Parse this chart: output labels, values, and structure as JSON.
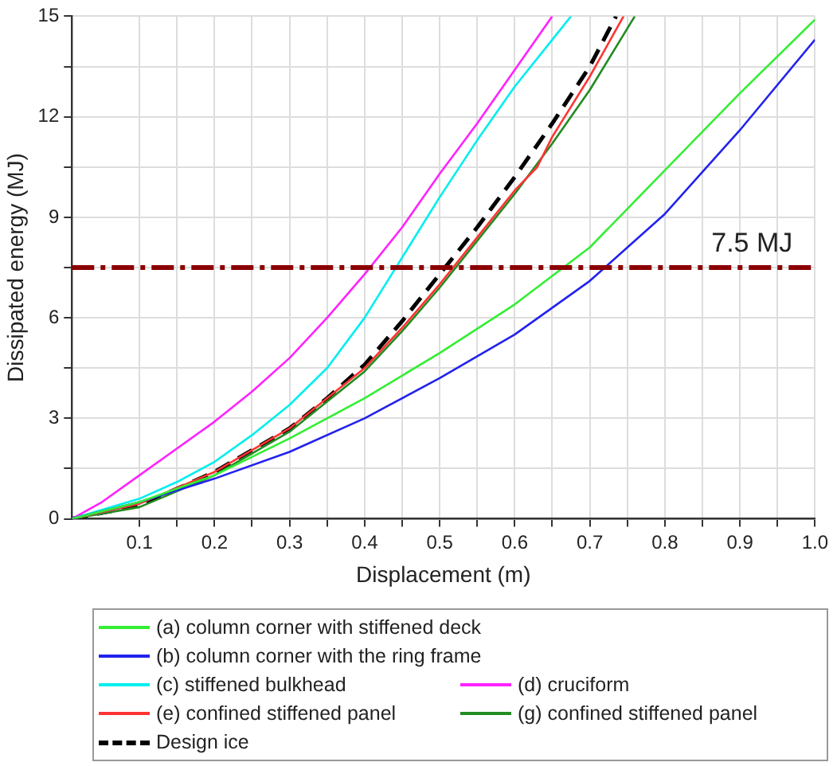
{
  "chart_data": {
    "type": "line",
    "xlabel": "Displacement (m)",
    "ylabel": "Dissipated energy (MJ)",
    "xlim": [
      0.01,
      1.0
    ],
    "ylim": [
      0,
      15
    ],
    "xticks": [
      0.1,
      {
        "value": 0.15,
        "label": null
      },
      0.2,
      {
        "value": 0.25,
        "label": null
      },
      0.3,
      {
        "value": 0.35,
        "label": null
      },
      0.4,
      {
        "value": 0.45,
        "label": null
      },
      0.5,
      {
        "value": 0.55,
        "label": null
      },
      0.6,
      {
        "value": 0.65,
        "label": null
      },
      0.7,
      {
        "value": 0.75,
        "label": null
      },
      0.8,
      {
        "value": 0.85,
        "label": null
      },
      0.9,
      {
        "value": 0.95,
        "label": null
      },
      {
        "value": 1.0,
        "label": "1.0"
      }
    ],
    "yticks": [
      0,
      {
        "value": 1.5,
        "label": null
      },
      3,
      {
        "value": 4.5,
        "label": null
      },
      6,
      {
        "value": 7.5,
        "label": null
      },
      9,
      {
        "value": 10.5,
        "label": null
      },
      12,
      {
        "value": 13.5,
        "label": null
      },
      15
    ],
    "grid": true,
    "legend": "bottom",
    "marker": "none",
    "line_style": "solid",
    "ref_lines": [
      {
        "axis": "y",
        "value": 7.5,
        "label": "7.5 MJ",
        "color": "#8b0000",
        "line_style": "dashdot"
      }
    ],
    "series": [
      {
        "name": "(a) column corner with stiffened deck",
        "color": "#33ee33",
        "x": [
          0.01,
          0.1,
          0.2,
          0.3,
          0.4,
          0.5,
          0.6,
          0.7,
          0.8,
          0.9,
          1.0
        ],
        "values": [
          0,
          0.5,
          1.3,
          2.4,
          3.6,
          4.95,
          6.4,
          8.1,
          10.4,
          12.7,
          14.9
        ]
      },
      {
        "name": "(b) column corner with the ring frame",
        "color": "#2222ee",
        "x": [
          0.01,
          0.1,
          0.2,
          0.3,
          0.4,
          0.5,
          0.6,
          0.7,
          0.8,
          0.9,
          1.0
        ],
        "values": [
          0,
          0.5,
          1.2,
          2.0,
          3.0,
          4.2,
          5.5,
          7.1,
          9.1,
          11.6,
          14.3
        ]
      },
      {
        "name": "(c) stiffened bulkhead",
        "color": "#00eeee",
        "x": [
          0.01,
          0.1,
          0.15,
          0.2,
          0.25,
          0.3,
          0.35,
          0.4,
          0.45,
          0.5,
          0.55,
          0.6,
          0.65,
          0.675
        ],
        "values": [
          0,
          0.6,
          1.1,
          1.7,
          2.5,
          3.4,
          4.5,
          6.0,
          7.8,
          9.6,
          11.3,
          12.9,
          14.3,
          15
        ]
      },
      {
        "name": "(d) cruciform",
        "color": "#ff22ff",
        "x": [
          0.01,
          0.05,
          0.1,
          0.15,
          0.2,
          0.25,
          0.3,
          0.35,
          0.4,
          0.45,
          0.5,
          0.55,
          0.6,
          0.65
        ],
        "values": [
          0,
          0.5,
          1.3,
          2.1,
          2.9,
          3.8,
          4.8,
          6.0,
          7.3,
          8.7,
          10.3,
          11.8,
          13.4,
          15
        ]
      },
      {
        "name": "(e) confined stiffened panel",
        "color": "#ff3333",
        "x": [
          0.01,
          0.1,
          0.2,
          0.3,
          0.4,
          0.45,
          0.5,
          0.55,
          0.6,
          0.63,
          0.65,
          0.7,
          0.745
        ],
        "values": [
          0,
          0.45,
          1.4,
          2.7,
          4.5,
          5.7,
          7.0,
          8.4,
          9.8,
          10.5,
          11.4,
          13.2,
          15
        ]
      },
      {
        "name": "(g) confined stiffened panel",
        "color": "#228b22",
        "x": [
          0.01,
          0.1,
          0.2,
          0.3,
          0.4,
          0.45,
          0.5,
          0.55,
          0.6,
          0.65,
          0.7,
          0.76
        ],
        "values": [
          0,
          0.35,
          1.3,
          2.6,
          4.4,
          5.6,
          6.9,
          8.3,
          9.7,
          11.2,
          12.8,
          15
        ]
      },
      {
        "name": "Design ice",
        "color": "#000000",
        "line_style": "dashed",
        "x": [
          0.01,
          0.1,
          0.2,
          0.3,
          0.35,
          0.4,
          0.45,
          0.5,
          0.55,
          0.6,
          0.65,
          0.7,
          0.735
        ],
        "values": [
          0,
          0.4,
          1.4,
          2.7,
          3.6,
          4.6,
          5.9,
          7.3,
          8.7,
          10.2,
          11.8,
          13.5,
          15
        ]
      }
    ]
  }
}
